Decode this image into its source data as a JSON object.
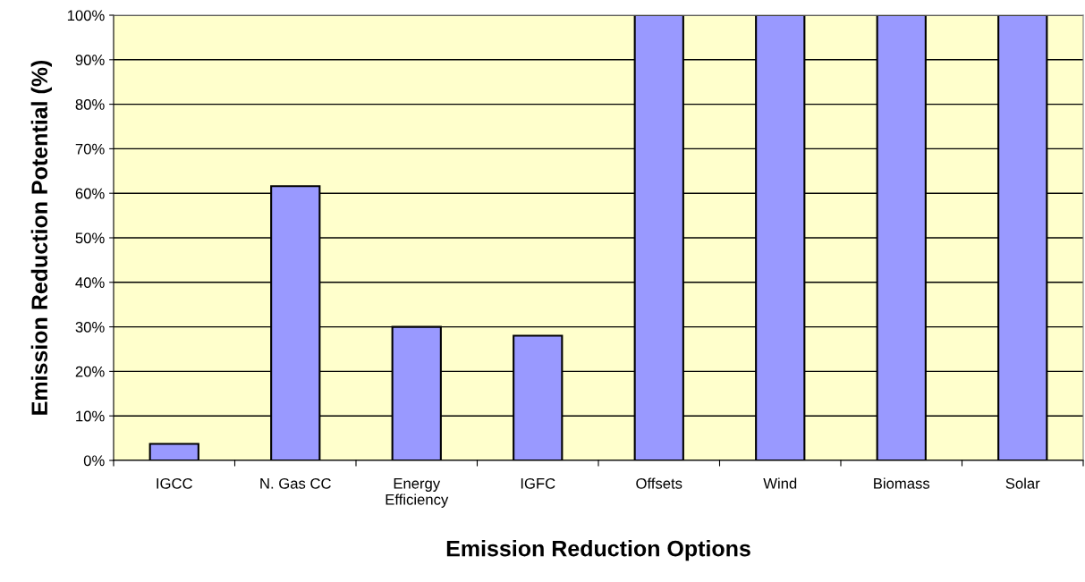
{
  "chart_data": {
    "type": "bar",
    "xlabel": "Emission Reduction Options",
    "ylabel": "Emission Reduction Potential (%)",
    "categories": [
      "IGCC",
      "N. Gas CC",
      "Energy\nEfficiency",
      "IGFC",
      "Offsets",
      "Wind",
      "Biomass",
      "Solar"
    ],
    "values": [
      3.7,
      61.6,
      30,
      28,
      100,
      100,
      100,
      100
    ],
    "color": "#9999ff",
    "ylim": [
      0,
      100
    ],
    "yticks": [
      {
        "value": 0,
        "label": "0%"
      },
      {
        "value": 10,
        "label": "10%"
      },
      {
        "value": 20,
        "label": "20%"
      },
      {
        "value": 30,
        "label": "30%"
      },
      {
        "value": 40,
        "label": "40%"
      },
      {
        "value": 50,
        "label": "50%"
      },
      {
        "value": 60,
        "label": "60%"
      },
      {
        "value": 70,
        "label": "70%"
      },
      {
        "value": 80,
        "label": "80%"
      },
      {
        "value": 90,
        "label": "90%"
      },
      {
        "value": 100,
        "label": "100%"
      }
    ],
    "grid": "y",
    "legend": false
  }
}
